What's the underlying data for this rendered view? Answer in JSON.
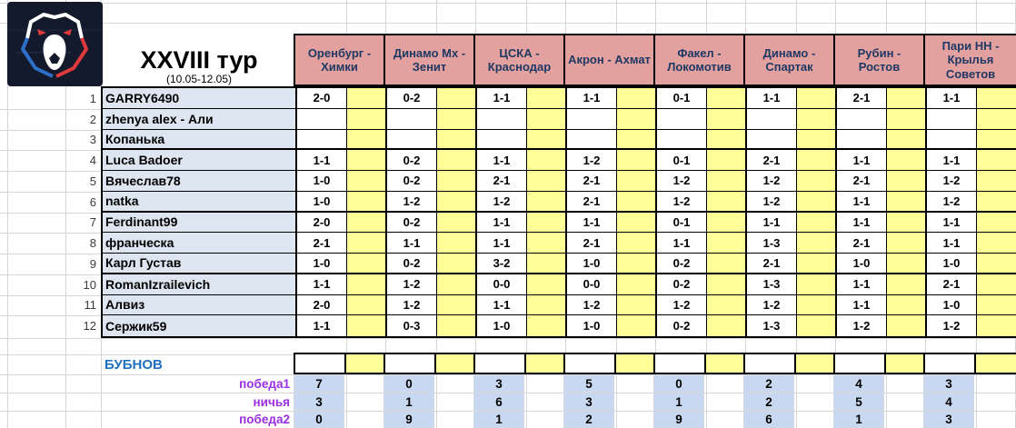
{
  "title": {
    "round": "XXVIII тур",
    "dates": "(10.05-12.05)"
  },
  "logo": {
    "name": "rpl-bear-logo"
  },
  "matches": [
    "Оренбург - Химки",
    "Динамо Мх - Зенит",
    "ЦСКА - Краснодар",
    "Акрон - Ахмат",
    "Факел - Локомотив",
    "Динамо - Спартак",
    "Рубин - Ростов",
    "Пари НН - Крылья Советов"
  ],
  "players": [
    {
      "num": "1",
      "name": "GARRY6490",
      "predictions": [
        "2-0",
        "0-2",
        "1-1",
        "1-1",
        "0-1",
        "1-1",
        "2-1",
        "1-1"
      ]
    },
    {
      "num": "2",
      "name": "zhenya alex - Али",
      "predictions": [
        "",
        "",
        "",
        "",
        "",
        "",
        "",
        ""
      ]
    },
    {
      "num": "3",
      "name": "Копанька",
      "predictions": [
        "",
        "",
        "",
        "",
        "",
        "",
        "",
        ""
      ]
    },
    {
      "num": "4",
      "name": "Luca Badoer",
      "predictions": [
        "1-1",
        "0-2",
        "1-1",
        "1-2",
        "0-1",
        "2-1",
        "1-1",
        "1-1"
      ]
    },
    {
      "num": "5",
      "name": "Вячеслав78",
      "predictions": [
        "1-0",
        "0-2",
        "2-1",
        "2-1",
        "1-2",
        "1-2",
        "2-1",
        "1-2"
      ]
    },
    {
      "num": "6",
      "name": "natka",
      "predictions": [
        "1-0",
        "1-2",
        "1-2",
        "2-1",
        "1-2",
        "1-2",
        "1-1",
        "1-2"
      ]
    },
    {
      "num": "7",
      "name": "Ferdinant99",
      "predictions": [
        "2-0",
        "0-2",
        "1-1",
        "1-1",
        "0-1",
        "1-1",
        "1-1",
        "1-1"
      ]
    },
    {
      "num": "8",
      "name": "франческа",
      "predictions": [
        "2-1",
        "1-1",
        "1-1",
        "2-1",
        "1-1",
        "1-3",
        "2-1",
        "1-1"
      ]
    },
    {
      "num": "9",
      "name": "Карл Густав",
      "predictions": [
        "1-0",
        "0-2",
        "3-2",
        "1-0",
        "0-2",
        "2-1",
        "1-0",
        "1-0"
      ]
    },
    {
      "num": "10",
      "name": "RomanIzrailevich",
      "predictions": [
        "1-1",
        "1-2",
        "0-0",
        "0-0",
        "0-2",
        "1-3",
        "1-1",
        "2-1"
      ]
    },
    {
      "num": "11",
      "name": "Алвиз",
      "predictions": [
        "2-0",
        "1-2",
        "1-1",
        "1-2",
        "1-2",
        "1-2",
        "1-1",
        "1-0"
      ]
    },
    {
      "num": "12",
      "name": "Сержик59",
      "predictions": [
        "1-1",
        "0-3",
        "1-0",
        "1-0",
        "0-2",
        "1-3",
        "1-2",
        "1-2"
      ]
    }
  ],
  "bubnov": {
    "label": "БУБНОВ",
    "predictions": [
      "",
      "",
      "",
      "",
      "",
      "",
      "",
      ""
    ]
  },
  "stats": [
    {
      "label": "победа1",
      "values": [
        "7",
        "0",
        "3",
        "5",
        "0",
        "2",
        "4",
        "3"
      ]
    },
    {
      "label": "ничья",
      "values": [
        "3",
        "1",
        "6",
        "3",
        "1",
        "2",
        "5",
        "4"
      ]
    },
    {
      "label": "победа2",
      "values": [
        "0",
        "9",
        "1",
        "2",
        "9",
        "6",
        "1",
        "3"
      ]
    }
  ],
  "colors": {
    "header-bg": "#e2a19e",
    "header-text": "#1f3864",
    "yellow-cell": "#ffff99",
    "name-cell-bg": "#dde5f0",
    "stat-cell-bg": "#c9d8f1",
    "label-purple": "#9b2fe3",
    "bubnov-blue": "#1f6fbf"
  }
}
